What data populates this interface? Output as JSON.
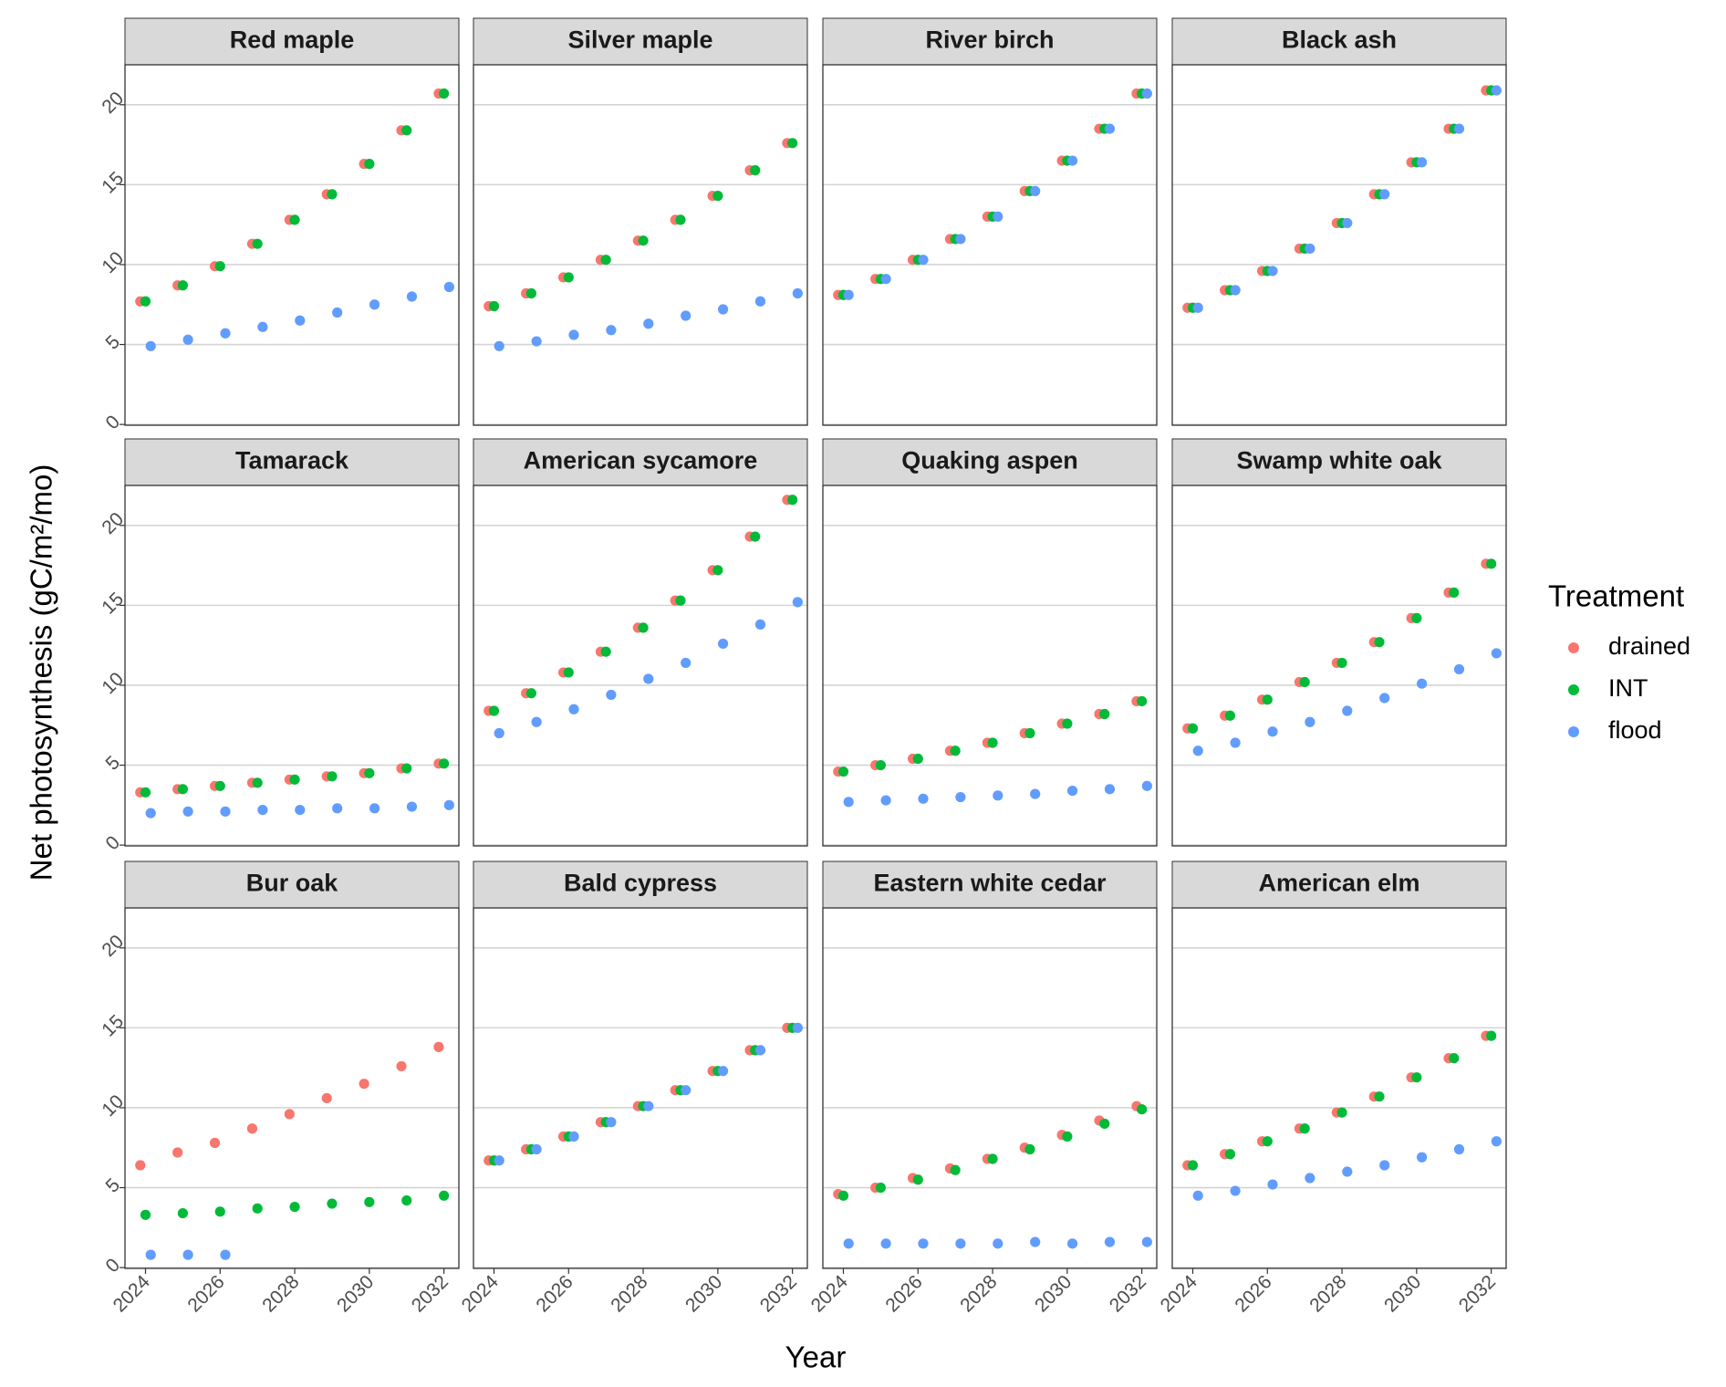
{
  "chart_data": {
    "type": "scatter",
    "y_label": "Net photosynthesis (gC/m²/mo)",
    "x_label": "Year",
    "legend_title": "Treatment",
    "series": [
      {
        "name": "drained",
        "color": "#F8766D"
      },
      {
        "name": "INT",
        "color": "#00BA38"
      },
      {
        "name": "flood",
        "color": "#619CFF"
      }
    ],
    "x": [
      2024,
      2025,
      2026,
      2027,
      2028,
      2029,
      2030,
      2031,
      2032
    ],
    "xlim": [
      2023.45,
      2032.4
    ],
    "xticks": [
      2024,
      2026,
      2028,
      2030,
      2032
    ],
    "ylim": [
      -0.05,
      22.5
    ],
    "yticks": [
      0,
      5,
      10,
      15,
      20
    ],
    "grid": true,
    "panels": [
      {
        "title": "Red maple",
        "series": [
          {
            "values": [
              7.7,
              8.7,
              9.9,
              11.3,
              12.8,
              14.4,
              16.3,
              18.4,
              20.7
            ]
          },
          {
            "values": [
              7.7,
              8.7,
              9.9,
              11.3,
              12.8,
              14.4,
              16.3,
              18.4,
              20.7
            ]
          },
          {
            "values": [
              4.9,
              5.3,
              5.7,
              6.1,
              6.5,
              7.0,
              7.5,
              8.0,
              8.6
            ]
          }
        ]
      },
      {
        "title": "Silver maple",
        "series": [
          {
            "values": [
              7.4,
              8.2,
              9.2,
              10.3,
              11.5,
              12.8,
              14.3,
              15.9,
              17.6
            ]
          },
          {
            "values": [
              7.4,
              8.2,
              9.2,
              10.3,
              11.5,
              12.8,
              14.3,
              15.9,
              17.6
            ]
          },
          {
            "values": [
              4.9,
              5.2,
              5.6,
              5.9,
              6.3,
              6.8,
              7.2,
              7.7,
              8.2
            ]
          }
        ]
      },
      {
        "title": "River birch",
        "series": [
          {
            "values": [
              8.1,
              9.1,
              10.3,
              11.6,
              13.0,
              14.6,
              16.5,
              18.5,
              20.7
            ]
          },
          {
            "values": [
              8.1,
              9.1,
              10.3,
              11.6,
              13.0,
              14.6,
              16.5,
              18.5,
              20.7
            ]
          },
          {
            "values": [
              8.1,
              9.1,
              10.3,
              11.6,
              13.0,
              14.6,
              16.5,
              18.5,
              20.7
            ]
          }
        ]
      },
      {
        "title": "Black ash",
        "series": [
          {
            "values": [
              7.3,
              8.4,
              9.6,
              11.0,
              12.6,
              14.4,
              16.4,
              18.5,
              20.9
            ]
          },
          {
            "values": [
              7.3,
              8.4,
              9.6,
              11.0,
              12.6,
              14.4,
              16.4,
              18.5,
              20.9
            ]
          },
          {
            "values": [
              7.3,
              8.4,
              9.6,
              11.0,
              12.6,
              14.4,
              16.4,
              18.5,
              20.9
            ]
          }
        ]
      },
      {
        "title": "Tamarack",
        "series": [
          {
            "values": [
              3.3,
              3.5,
              3.7,
              3.9,
              4.1,
              4.3,
              4.5,
              4.8,
              5.1
            ]
          },
          {
            "values": [
              3.3,
              3.5,
              3.7,
              3.9,
              4.1,
              4.3,
              4.5,
              4.8,
              5.1
            ]
          },
          {
            "values": [
              2.0,
              2.1,
              2.1,
              2.2,
              2.2,
              2.3,
              2.3,
              2.4,
              2.5
            ]
          }
        ]
      },
      {
        "title": "American sycamore",
        "series": [
          {
            "values": [
              8.4,
              9.5,
              10.8,
              12.1,
              13.6,
              15.3,
              17.2,
              19.3,
              21.6
            ]
          },
          {
            "values": [
              8.4,
              9.5,
              10.8,
              12.1,
              13.6,
              15.3,
              17.2,
              19.3,
              21.6
            ]
          },
          {
            "values": [
              7.0,
              7.7,
              8.5,
              9.4,
              10.4,
              11.4,
              12.6,
              13.8,
              15.2
            ]
          }
        ]
      },
      {
        "title": "Quaking aspen",
        "series": [
          {
            "values": [
              4.6,
              5.0,
              5.4,
              5.9,
              6.4,
              7.0,
              7.6,
              8.2,
              9.0
            ]
          },
          {
            "values": [
              4.6,
              5.0,
              5.4,
              5.9,
              6.4,
              7.0,
              7.6,
              8.2,
              9.0
            ]
          },
          {
            "values": [
              2.7,
              2.8,
              2.9,
              3.0,
              3.1,
              3.2,
              3.4,
              3.5,
              3.7
            ]
          }
        ]
      },
      {
        "title": "Swamp white oak",
        "series": [
          {
            "values": [
              7.3,
              8.1,
              9.1,
              10.2,
              11.4,
              12.7,
              14.2,
              15.8,
              17.6
            ]
          },
          {
            "values": [
              7.3,
              8.1,
              9.1,
              10.2,
              11.4,
              12.7,
              14.2,
              15.8,
              17.6
            ]
          },
          {
            "values": [
              5.9,
              6.4,
              7.1,
              7.7,
              8.4,
              9.2,
              10.1,
              11.0,
              12.0
            ]
          }
        ]
      },
      {
        "title": "Bur oak",
        "series": [
          {
            "values": [
              6.4,
              7.2,
              7.8,
              8.7,
              9.6,
              10.6,
              11.5,
              12.6,
              13.8
            ]
          },
          {
            "values": [
              3.3,
              3.4,
              3.5,
              3.7,
              3.8,
              4.0,
              4.1,
              4.2,
              4.5
            ]
          },
          {
            "values": [
              0.8,
              0.8,
              0.8,
              null,
              null,
              null,
              null,
              null,
              null
            ]
          }
        ]
      },
      {
        "title": "Bald cypress",
        "series": [
          {
            "values": [
              6.7,
              7.4,
              8.2,
              9.1,
              10.1,
              11.1,
              12.3,
              13.6,
              15.0
            ]
          },
          {
            "values": [
              6.7,
              7.4,
              8.2,
              9.1,
              10.1,
              11.1,
              12.3,
              13.6,
              15.0
            ]
          },
          {
            "values": [
              6.7,
              7.4,
              8.2,
              9.1,
              10.1,
              11.1,
              12.3,
              13.6,
              15.0
            ]
          }
        ]
      },
      {
        "title": "Eastern white cedar",
        "series": [
          {
            "values": [
              4.6,
              5.0,
              5.6,
              6.2,
              6.8,
              7.5,
              8.3,
              9.2,
              10.1
            ]
          },
          {
            "values": [
              4.5,
              5.0,
              5.5,
              6.1,
              6.8,
              7.4,
              8.2,
              9.0,
              9.9
            ]
          },
          {
            "values": [
              1.5,
              1.5,
              1.5,
              1.5,
              1.5,
              1.6,
              1.5,
              1.6,
              1.6
            ]
          }
        ]
      },
      {
        "title": "American elm",
        "series": [
          {
            "values": [
              6.4,
              7.1,
              7.9,
              8.7,
              9.7,
              10.7,
              11.9,
              13.1,
              14.5
            ]
          },
          {
            "values": [
              6.4,
              7.1,
              7.9,
              8.7,
              9.7,
              10.7,
              11.9,
              13.1,
              14.5
            ]
          },
          {
            "values": [
              4.5,
              4.8,
              5.2,
              5.6,
              6.0,
              6.4,
              6.9,
              7.4,
              7.9
            ]
          }
        ]
      }
    ]
  }
}
